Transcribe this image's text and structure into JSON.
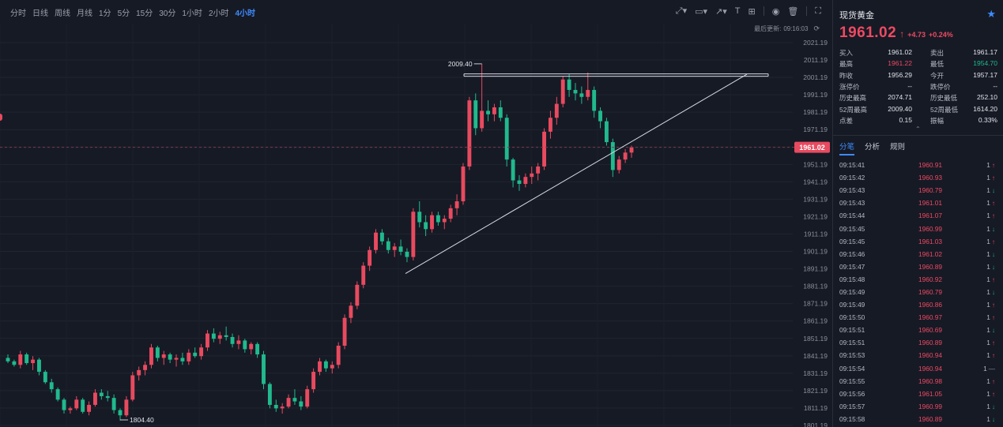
{
  "toolbar": {
    "periods": [
      "分时",
      "日线",
      "周线",
      "月线",
      "1分",
      "5分",
      "15分",
      "30分",
      "1小时",
      "2小时",
      "4小时"
    ],
    "active_period": "4小时",
    "last_update_label": "最后更新:",
    "last_update_time": "09:16:03"
  },
  "chart_data": {
    "type": "candlestick",
    "y_ticks": [
      "2021.19",
      "2011.19",
      "2001.19",
      "1991.19",
      "1981.19",
      "1971.19",
      "1961.19",
      "1951.19",
      "1941.19",
      "1931.19",
      "1921.19",
      "1911.19",
      "1901.19",
      "1891.19",
      "1881.19",
      "1871.19",
      "1861.19",
      "1851.19",
      "1841.19",
      "1831.19",
      "1821.19",
      "1811.19",
      "1801.19"
    ],
    "last_price_label": "1961.02",
    "high_annotation": "2009.40",
    "low_annotation": "1804.40",
    "colors": {
      "up": "#e84a5f",
      "down": "#21b98d",
      "grid": "#1f2430",
      "trendline": "#d8dbe2",
      "price_line": "#7a3b48"
    },
    "candles": [
      [
        1840,
        1842,
        1837,
        1838
      ],
      [
        1838,
        1839,
        1835,
        1836
      ],
      [
        1836,
        1844,
        1834,
        1842
      ],
      [
        1842,
        1843,
        1836,
        1837
      ],
      [
        1837,
        1841,
        1833,
        1839
      ],
      [
        1839,
        1840,
        1830,
        1832
      ],
      [
        1832,
        1833,
        1825,
        1826
      ],
      [
        1826,
        1828,
        1820,
        1822
      ],
      [
        1822,
        1823,
        1815,
        1816
      ],
      [
        1816,
        1817,
        1808,
        1810
      ],
      [
        1810,
        1812,
        1808,
        1811
      ],
      [
        1811,
        1818,
        1810,
        1816
      ],
      [
        1816,
        1817,
        1808,
        1809
      ],
      [
        1809,
        1815,
        1807,
        1813
      ],
      [
        1813,
        1822,
        1812,
        1820
      ],
      [
        1820,
        1822,
        1816,
        1818
      ],
      [
        1818,
        1821,
        1815,
        1817
      ],
      [
        1817,
        1819,
        1808,
        1810
      ],
      [
        1810,
        1811,
        1804,
        1807
      ],
      [
        1807,
        1818,
        1806,
        1816
      ],
      [
        1816,
        1832,
        1815,
        1830
      ],
      [
        1830,
        1835,
        1827,
        1833
      ],
      [
        1833,
        1838,
        1830,
        1836
      ],
      [
        1836,
        1848,
        1834,
        1846
      ],
      [
        1846,
        1847,
        1838,
        1840
      ],
      [
        1840,
        1844,
        1836,
        1842
      ],
      [
        1842,
        1843,
        1837,
        1839
      ],
      [
        1839,
        1842,
        1835,
        1840
      ],
      [
        1840,
        1843,
        1836,
        1838
      ],
      [
        1838,
        1845,
        1836,
        1843
      ],
      [
        1843,
        1846,
        1840,
        1841
      ],
      [
        1841,
        1848,
        1839,
        1846
      ],
      [
        1846,
        1856,
        1844,
        1854
      ],
      [
        1854,
        1857,
        1849,
        1851
      ],
      [
        1851,
        1855,
        1848,
        1853
      ],
      [
        1853,
        1858,
        1850,
        1852
      ],
      [
        1852,
        1854,
        1846,
        1848
      ],
      [
        1848,
        1853,
        1845,
        1850
      ],
      [
        1850,
        1851,
        1843,
        1845
      ],
      [
        1845,
        1849,
        1842,
        1848
      ],
      [
        1848,
        1849,
        1840,
        1842
      ],
      [
        1842,
        1844,
        1822,
        1825
      ],
      [
        1825,
        1826,
        1811,
        1813
      ],
      [
        1813,
        1816,
        1809,
        1811
      ],
      [
        1811,
        1814,
        1808,
        1812
      ],
      [
        1812,
        1819,
        1811,
        1817
      ],
      [
        1817,
        1822,
        1813,
        1815
      ],
      [
        1815,
        1818,
        1810,
        1812
      ],
      [
        1812,
        1824,
        1811,
        1822
      ],
      [
        1822,
        1834,
        1820,
        1832
      ],
      [
        1832,
        1840,
        1830,
        1838
      ],
      [
        1838,
        1839,
        1832,
        1834
      ],
      [
        1834,
        1838,
        1831,
        1836
      ],
      [
        1836,
        1849,
        1834,
        1847
      ],
      [
        1847,
        1865,
        1845,
        1863
      ],
      [
        1863,
        1872,
        1860,
        1870
      ],
      [
        1870,
        1884,
        1868,
        1882
      ],
      [
        1882,
        1895,
        1880,
        1893
      ],
      [
        1893,
        1904,
        1890,
        1902
      ],
      [
        1902,
        1914,
        1900,
        1912
      ],
      [
        1912,
        1914,
        1905,
        1907
      ],
      [
        1907,
        1909,
        1900,
        1902
      ],
      [
        1902,
        1906,
        1898,
        1904
      ],
      [
        1904,
        1908,
        1899,
        1901
      ],
      [
        1901,
        1903,
        1895,
        1898
      ],
      [
        1898,
        1926,
        1896,
        1924
      ],
      [
        1924,
        1930,
        1915,
        1918
      ],
      [
        1918,
        1922,
        1910,
        1914
      ],
      [
        1914,
        1924,
        1912,
        1922
      ],
      [
        1922,
        1924,
        1916,
        1918
      ],
      [
        1918,
        1922,
        1914,
        1920
      ],
      [
        1920,
        1928,
        1918,
        1926
      ],
      [
        1926,
        1934,
        1922,
        1930
      ],
      [
        1930,
        1952,
        1928,
        1950
      ],
      [
        1950,
        1990,
        1948,
        1988
      ],
      [
        1988,
        1992,
        1968,
        1972
      ],
      [
        1972,
        2009,
        1970,
        1982
      ],
      [
        1982,
        1988,
        1976,
        1980
      ],
      [
        1980,
        1986,
        1976,
        1984
      ],
      [
        1984,
        1988,
        1976,
        1978
      ],
      [
        1978,
        1980,
        1950,
        1954
      ],
      [
        1954,
        1955,
        1938,
        1942
      ],
      [
        1942,
        1945,
        1936,
        1940
      ],
      [
        1940,
        1946,
        1938,
        1944
      ],
      [
        1944,
        1950,
        1940,
        1946
      ],
      [
        1946,
        1952,
        1942,
        1950
      ],
      [
        1950,
        1972,
        1948,
        1970
      ],
      [
        1970,
        1982,
        1966,
        1978
      ],
      [
        1978,
        1990,
        1974,
        1986
      ],
      [
        1986,
        2002,
        1984,
        2000
      ],
      [
        2000,
        2003,
        1990,
        1994
      ],
      [
        1994,
        1998,
        1988,
        1992
      ],
      [
        1992,
        1996,
        1986,
        1990
      ],
      [
        1990,
        2004,
        1988,
        1994
      ],
      [
        1994,
        1996,
        1978,
        1982
      ],
      [
        1982,
        1984,
        1972,
        1976
      ],
      [
        1976,
        1978,
        1962,
        1964
      ],
      [
        1964,
        1966,
        1944,
        1948
      ],
      [
        1948,
        1956,
        1946,
        1954
      ],
      [
        1954,
        1960,
        1952,
        1958
      ],
      [
        1958,
        1962,
        1955,
        1961
      ]
    ]
  },
  "quote": {
    "name": "现货黄金",
    "price": "1961.02",
    "change": "+4.73",
    "change_pct": "+0.24%",
    "stats": [
      [
        {
          "label": "买入",
          "value": "1961.02",
          "color": ""
        },
        {
          "label": "卖出",
          "value": "1961.17",
          "color": ""
        }
      ],
      [
        {
          "label": "最高",
          "value": "1961.22",
          "color": "red"
        },
        {
          "label": "最低",
          "value": "1954.70",
          "color": "green"
        }
      ],
      [
        {
          "label": "昨收",
          "value": "1956.29",
          "color": ""
        },
        {
          "label": "今开",
          "value": "1957.17",
          "color": ""
        }
      ],
      [
        {
          "label": "涨停价",
          "value": "--",
          "color": ""
        },
        {
          "label": "跌停价",
          "value": "--",
          "color": ""
        }
      ],
      [
        {
          "label": "历史最高",
          "value": "2074.71",
          "color": ""
        },
        {
          "label": "历史最低",
          "value": "252.10",
          "color": ""
        }
      ],
      [
        {
          "label": "52周最高",
          "value": "2009.40",
          "color": ""
        },
        {
          "label": "52周最低",
          "value": "1614.20",
          "color": ""
        }
      ],
      [
        {
          "label": "点差",
          "value": "0.15",
          "color": ""
        },
        {
          "label": "振幅",
          "value": "0.33%",
          "color": ""
        }
      ]
    ],
    "tabs": [
      "分笔",
      "分析",
      "规则"
    ],
    "active_tab": "分笔",
    "ticks": [
      {
        "time": "09:15:41",
        "price": "1960.91",
        "vol": "1",
        "dir": "up"
      },
      {
        "time": "09:15:42",
        "price": "1960.93",
        "vol": "1",
        "dir": "up"
      },
      {
        "time": "09:15:43",
        "price": "1960.79",
        "vol": "1",
        "dir": "down"
      },
      {
        "time": "09:15:43",
        "price": "1961.01",
        "vol": "1",
        "dir": "up"
      },
      {
        "time": "09:15:44",
        "price": "1961.07",
        "vol": "1",
        "dir": "up"
      },
      {
        "time": "09:15:45",
        "price": "1960.99",
        "vol": "1",
        "dir": "down"
      },
      {
        "time": "09:15:45",
        "price": "1961.03",
        "vol": "1",
        "dir": "up"
      },
      {
        "time": "09:15:46",
        "price": "1961.02",
        "vol": "1",
        "dir": "down"
      },
      {
        "time": "09:15:47",
        "price": "1960.89",
        "vol": "1",
        "dir": "down"
      },
      {
        "time": "09:15:48",
        "price": "1960.92",
        "vol": "1",
        "dir": "up"
      },
      {
        "time": "09:15:49",
        "price": "1960.79",
        "vol": "1",
        "dir": "down"
      },
      {
        "time": "09:15:49",
        "price": "1960.86",
        "vol": "1",
        "dir": "up"
      },
      {
        "time": "09:15:50",
        "price": "1960.97",
        "vol": "1",
        "dir": "up"
      },
      {
        "time": "09:15:51",
        "price": "1960.69",
        "vol": "1",
        "dir": "down"
      },
      {
        "time": "09:15:51",
        "price": "1960.89",
        "vol": "1",
        "dir": "up"
      },
      {
        "time": "09:15:53",
        "price": "1960.94",
        "vol": "1",
        "dir": "up"
      },
      {
        "time": "09:15:54",
        "price": "1960.94",
        "vol": "1",
        "dir": "eq"
      },
      {
        "time": "09:15:55",
        "price": "1960.98",
        "vol": "1",
        "dir": "up"
      },
      {
        "time": "09:15:56",
        "price": "1961.05",
        "vol": "1",
        "dir": "up"
      },
      {
        "time": "09:15:57",
        "price": "1960.99",
        "vol": "1",
        "dir": "down"
      },
      {
        "time": "09:15:58",
        "price": "1960.89",
        "vol": "1",
        "dir": "down"
      }
    ]
  }
}
